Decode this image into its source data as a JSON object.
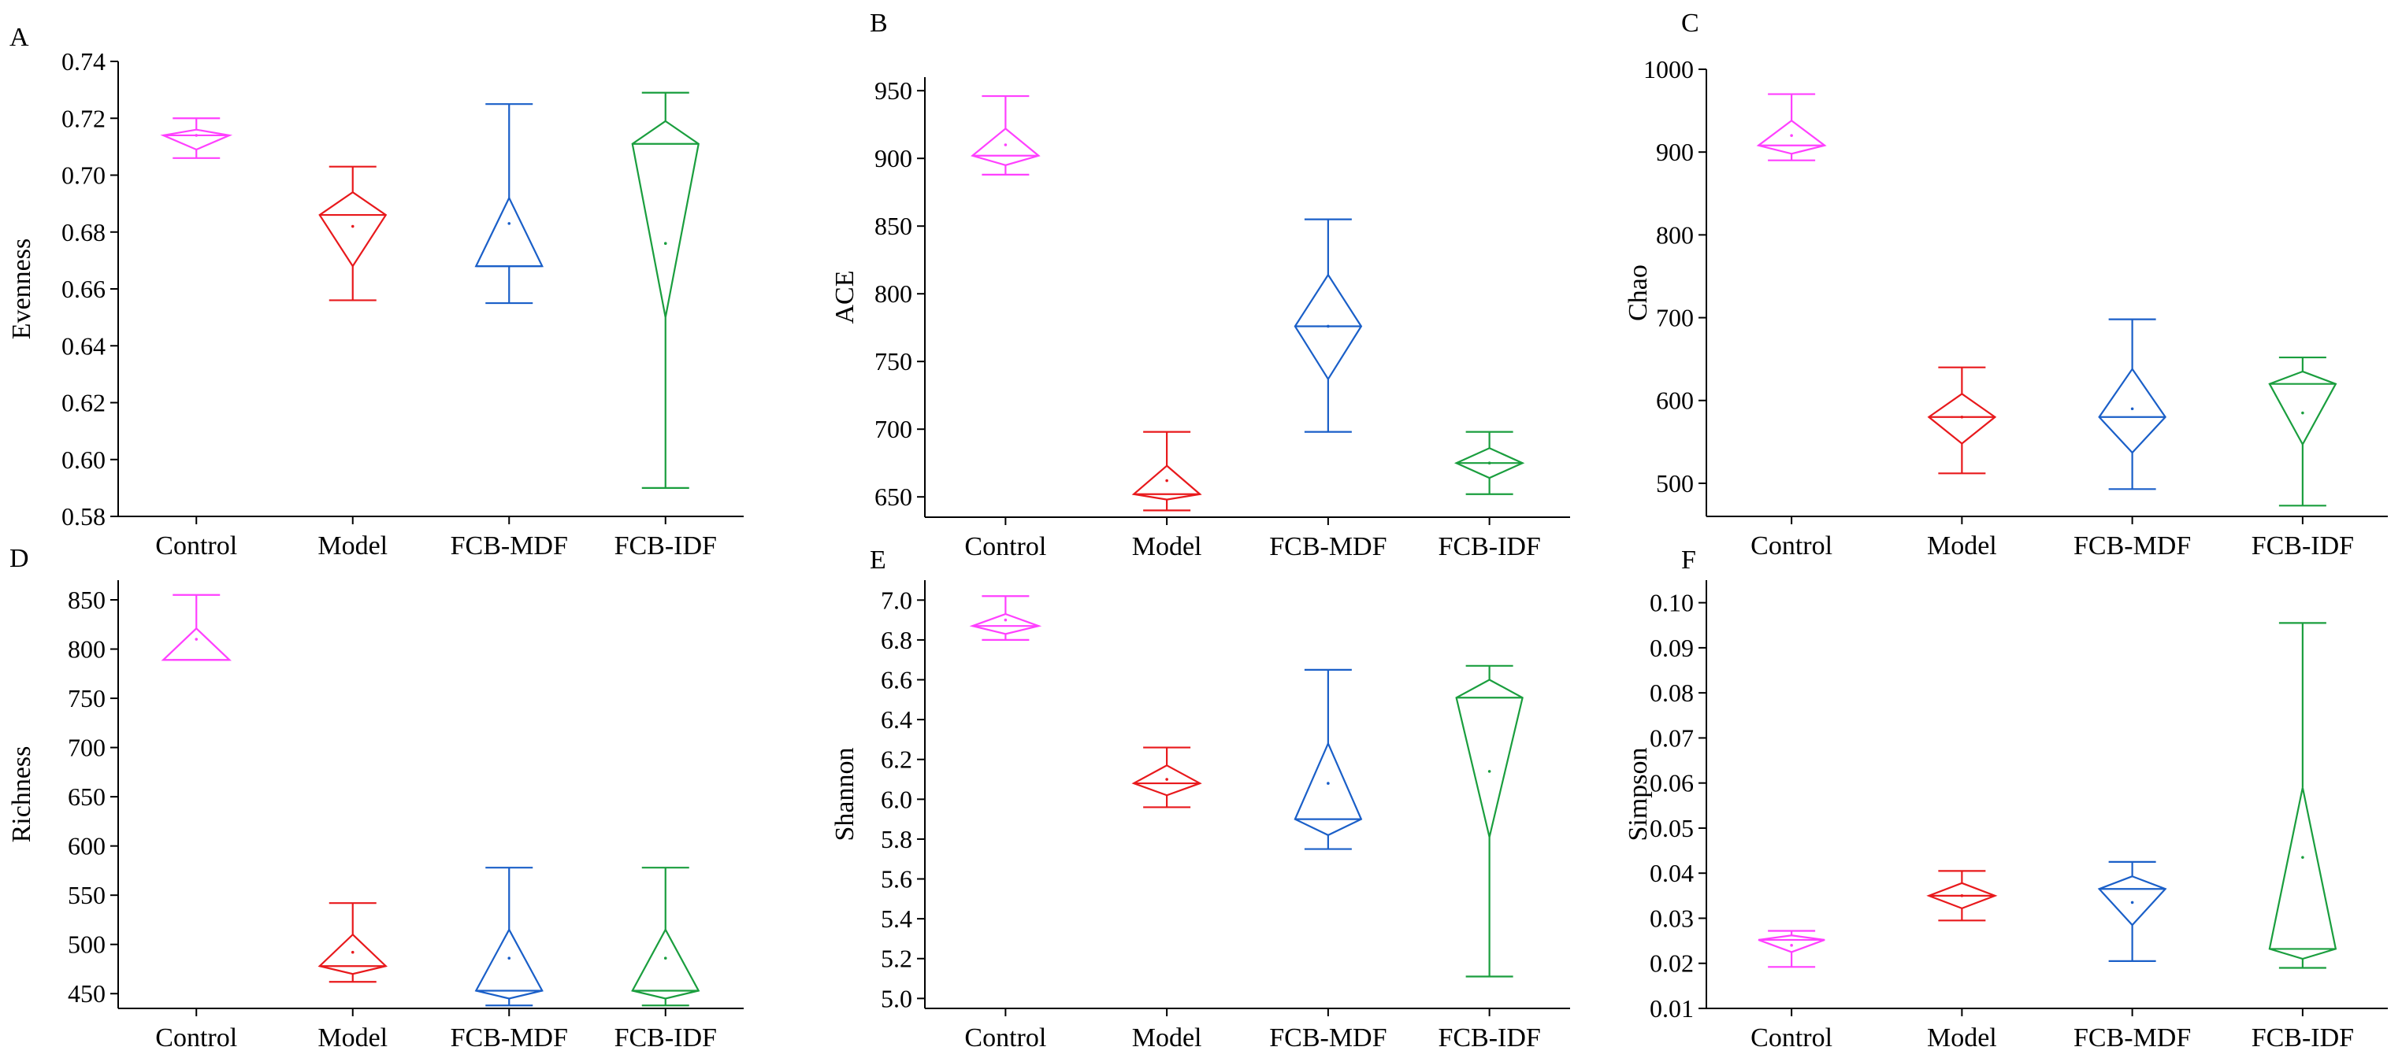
{
  "chart_data": [
    {
      "panel": "A",
      "type": "box",
      "ylabel": "Evenness",
      "ylim": [
        0.58,
        0.74
      ],
      "yticks": [
        "0.58",
        "0.60",
        "0.62",
        "0.64",
        "0.66",
        "0.68",
        "0.70",
        "0.72",
        "0.74"
      ],
      "categories": [
        "Control",
        "Model",
        "FCB-MDF",
        "FCB-IDF"
      ],
      "groups": [
        {
          "name": "Control",
          "color": "#ff40ff",
          "min": 0.706,
          "q1": 0.709,
          "median": 0.714,
          "q3": 0.716,
          "max": 0.72,
          "mean": 0.714
        },
        {
          "name": "Model",
          "color": "#e8191c",
          "min": 0.656,
          "q1": 0.668,
          "median": 0.686,
          "q3": 0.694,
          "max": 0.703,
          "mean": 0.682
        },
        {
          "name": "FCB-MDF",
          "color": "#1a5fc8",
          "min": 0.655,
          "q1": 0.668,
          "median": 0.668,
          "q3": 0.692,
          "max": 0.725,
          "mean": 0.683
        },
        {
          "name": "FCB-IDF",
          "color": "#1a9e3e",
          "min": 0.59,
          "q1": 0.65,
          "median": 0.711,
          "q3": 0.719,
          "max": 0.729,
          "mean": 0.676
        }
      ]
    },
    {
      "panel": "B",
      "type": "box",
      "ylabel": "ACE",
      "ylim": [
        635,
        960
      ],
      "yticks": [
        "650",
        "700",
        "750",
        "800",
        "850",
        "900",
        "950"
      ],
      "categories": [
        "Control",
        "Model",
        "FCB-MDF",
        "FCB-IDF"
      ],
      "groups": [
        {
          "name": "Control",
          "color": "#ff40ff",
          "min": 888,
          "q1": 895,
          "median": 902,
          "q3": 922,
          "max": 946,
          "mean": 910
        },
        {
          "name": "Model",
          "color": "#e8191c",
          "min": 640,
          "q1": 648,
          "median": 652,
          "q3": 673,
          "max": 698,
          "mean": 662
        },
        {
          "name": "FCB-MDF",
          "color": "#1a5fc8",
          "min": 698,
          "q1": 737,
          "median": 776,
          "q3": 814,
          "max": 855,
          "mean": 776
        },
        {
          "name": "FCB-IDF",
          "color": "#1a9e3e",
          "min": 652,
          "q1": 664,
          "median": 675,
          "q3": 686,
          "max": 698,
          "mean": 675
        }
      ]
    },
    {
      "panel": "C",
      "type": "box",
      "ylabel": "Chao",
      "ylim": [
        460,
        1000
      ],
      "yticks": [
        "500",
        "600",
        "700",
        "800",
        "900",
        "1000"
      ],
      "categories": [
        "Control",
        "Model",
        "FCB-MDF",
        "FCB-IDF"
      ],
      "groups": [
        {
          "name": "Control",
          "color": "#ff40ff",
          "min": 890,
          "q1": 898,
          "median": 908,
          "q3": 938,
          "max": 970,
          "mean": 920
        },
        {
          "name": "Model",
          "color": "#e8191c",
          "min": 512,
          "q1": 548,
          "median": 580,
          "q3": 608,
          "max": 640,
          "mean": 580
        },
        {
          "name": "FCB-MDF",
          "color": "#1a5fc8",
          "min": 493,
          "q1": 537,
          "median": 580,
          "q3": 638,
          "max": 698,
          "mean": 590
        },
        {
          "name": "FCB-IDF",
          "color": "#1a9e3e",
          "min": 473,
          "q1": 547,
          "median": 620,
          "q3": 635,
          "max": 652,
          "mean": 585
        }
      ]
    },
    {
      "panel": "D",
      "type": "box",
      "ylabel": "Richness",
      "ylim": [
        435,
        870
      ],
      "yticks": [
        "450",
        "500",
        "550",
        "600",
        "650",
        "700",
        "750",
        "800",
        "850"
      ],
      "categories": [
        "Control",
        "Model",
        "FCB-MDF",
        "FCB-IDF"
      ],
      "groups": [
        {
          "name": "Control",
          "color": "#ff40ff",
          "min": 789,
          "q1": 789,
          "median": 789,
          "q3": 821,
          "max": 855,
          "mean": 810
        },
        {
          "name": "Model",
          "color": "#e8191c",
          "min": 462,
          "q1": 470,
          "median": 478,
          "q3": 510,
          "max": 542,
          "mean": 492
        },
        {
          "name": "FCB-MDF",
          "color": "#1a5fc8",
          "min": 438,
          "q1": 445,
          "median": 453,
          "q3": 515,
          "max": 578,
          "mean": 486
        },
        {
          "name": "FCB-IDF",
          "color": "#1a9e3e",
          "min": 438,
          "q1": 445,
          "median": 453,
          "q3": 515,
          "max": 578,
          "mean": 486
        }
      ]
    },
    {
      "panel": "E",
      "type": "box",
      "ylabel": "Shannon",
      "ylim": [
        4.95,
        7.1
      ],
      "yticks": [
        "5.0",
        "5.2",
        "5.4",
        "5.6",
        "5.8",
        "6.0",
        "6.2",
        "6.4",
        "6.6",
        "6.8",
        "7.0"
      ],
      "categories": [
        "Control",
        "Model",
        "FCB-MDF",
        "FCB-IDF"
      ],
      "groups": [
        {
          "name": "Control",
          "color": "#ff40ff",
          "min": 6.8,
          "q1": 6.83,
          "median": 6.87,
          "q3": 6.93,
          "max": 7.02,
          "mean": 6.9
        },
        {
          "name": "Model",
          "color": "#e8191c",
          "min": 5.96,
          "q1": 6.02,
          "median": 6.08,
          "q3": 6.17,
          "max": 6.26,
          "mean": 6.1
        },
        {
          "name": "FCB-MDF",
          "color": "#1a5fc8",
          "min": 5.75,
          "q1": 5.82,
          "median": 5.9,
          "q3": 6.28,
          "max": 6.65,
          "mean": 6.08
        },
        {
          "name": "FCB-IDF",
          "color": "#1a9e3e",
          "min": 5.11,
          "q1": 5.81,
          "median": 6.51,
          "q3": 6.6,
          "max": 6.67,
          "mean": 6.14
        }
      ]
    },
    {
      "panel": "F",
      "type": "box",
      "ylabel": "Simpson",
      "ylim": [
        0.01,
        0.105
      ],
      "yticks": [
        "0.01",
        "0.02",
        "0.03",
        "0.04",
        "0.05",
        "0.06",
        "0.07",
        "0.08",
        "0.09",
        "0.10"
      ],
      "categories": [
        "Control",
        "Model",
        "FCB-MDF",
        "FCB-IDF"
      ],
      "groups": [
        {
          "name": "Control",
          "color": "#ff40ff",
          "min": 0.0192,
          "q1": 0.0225,
          "median": 0.0252,
          "q3": 0.0262,
          "max": 0.0272,
          "mean": 0.024
        },
        {
          "name": "Model",
          "color": "#e8191c",
          "min": 0.0295,
          "q1": 0.0322,
          "median": 0.035,
          "q3": 0.0378,
          "max": 0.0405,
          "mean": 0.035
        },
        {
          "name": "FCB-MDF",
          "color": "#1a5fc8",
          "min": 0.0205,
          "q1": 0.0285,
          "median": 0.0365,
          "q3": 0.0393,
          "max": 0.0425,
          "mean": 0.0335
        },
        {
          "name": "FCB-IDF",
          "color": "#1a9e3e",
          "min": 0.019,
          "q1": 0.021,
          "median": 0.0232,
          "q3": 0.059,
          "max": 0.0955,
          "mean": 0.0435
        }
      ]
    }
  ]
}
